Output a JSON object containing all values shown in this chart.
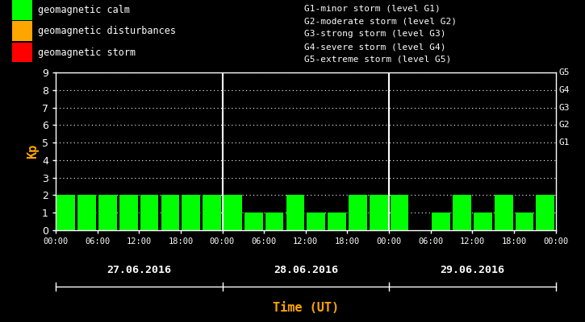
{
  "background_color": "#000000",
  "plot_bg_color": "#000000",
  "bar_color_calm": "#00ff00",
  "bar_color_disturb": "#ffa500",
  "bar_color_storm": "#ff0000",
  "text_color": "#ffffff",
  "title_color": "#ffa500",
  "kp_label_color": "#ffa500",
  "ylabel": "Kp",
  "xlabel": "Time (UT)",
  "ylim": [
    0,
    9
  ],
  "yticks": [
    0,
    1,
    2,
    3,
    4,
    5,
    6,
    7,
    8,
    9
  ],
  "days": [
    "27.06.2016",
    "28.06.2016",
    "29.06.2016"
  ],
  "kp_values": [
    [
      2,
      2,
      2,
      2,
      2,
      2,
      2,
      2
    ],
    [
      2,
      1,
      1,
      2,
      1,
      1,
      2,
      2
    ],
    [
      2,
      0,
      1,
      2,
      1,
      2,
      1,
      2
    ]
  ],
  "legend_items": [
    {
      "label": "geomagnetic calm",
      "color": "#00ff00"
    },
    {
      "label": "geomagnetic disturbances",
      "color": "#ffa500"
    },
    {
      "label": "geomagnetic storm",
      "color": "#ff0000"
    }
  ],
  "right_labels": [
    {
      "y": 5,
      "text": "G1"
    },
    {
      "y": 6,
      "text": "G2"
    },
    {
      "y": 7,
      "text": "G3"
    },
    {
      "y": 8,
      "text": "G4"
    },
    {
      "y": 9,
      "text": "G5"
    }
  ],
  "storm_levels_text": [
    "G1-minor storm (level G1)",
    "G2-moderate storm (level G2)",
    "G3-strong storm (level G3)",
    "G4-severe storm (level G4)",
    "G5-extreme storm (level G5)"
  ],
  "xtick_labels": [
    "00:00",
    "06:00",
    "12:00",
    "18:00"
  ]
}
